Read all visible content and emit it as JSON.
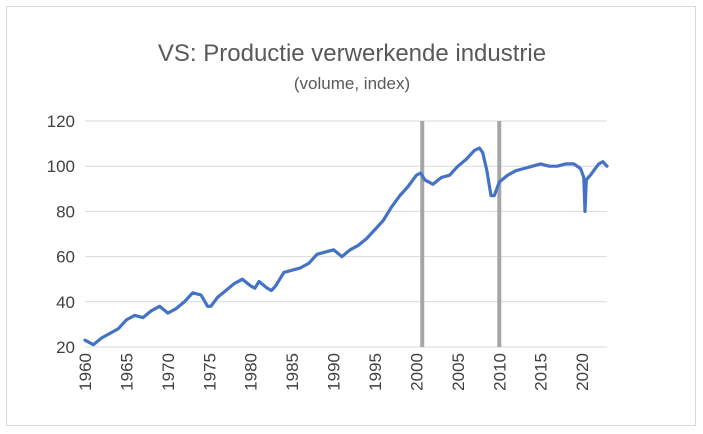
{
  "chart_data": {
    "type": "line",
    "title": "VS: Productie verwerkende industrie",
    "subtitle": "(volume, index)",
    "xlabel": "",
    "ylabel": "",
    "xlim": [
      1960,
      2023
    ],
    "ylim": [
      20,
      120
    ],
    "y_ticks": [
      "20",
      "40",
      "60",
      "80",
      "100",
      "120"
    ],
    "x_ticks": [
      "1960",
      "1965",
      "1970",
      "1975",
      "1980",
      "1985",
      "1990",
      "1995",
      "2000",
      "2005",
      "2010",
      "2015",
      "2020"
    ],
    "grid": "horizontal",
    "legend": "none",
    "vertical_lines": [
      2000.7,
      2010.0
    ],
    "colors": {
      "series": "#4472c4",
      "vlines": "#a6a6a6",
      "grid": "#d9d9d9"
    },
    "series": [
      {
        "x": [
          1960.0,
          1961.0,
          1962.0,
          1963.0,
          1964.0,
          1965.0,
          1966.0,
          1967.0,
          1968.0,
          1969.0,
          1970.0,
          1971.0,
          1972.0,
          1973.0,
          1974.0,
          1974.8,
          1975.2,
          1976.0,
          1977.0,
          1978.0,
          1979.0,
          1980.0,
          1980.5,
          1981.0,
          1982.0,
          1982.5,
          1983.0,
          1984.0,
          1985.0,
          1986.0,
          1987.0,
          1988.0,
          1989.0,
          1990.0,
          1991.0,
          1992.0,
          1993.0,
          1994.0,
          1995.0,
          1996.0,
          1997.0,
          1998.0,
          1999.0,
          2000.0,
          2000.5,
          2001.0,
          2002.0,
          2003.0,
          2004.0,
          2005.0,
          2006.0,
          2007.0,
          2007.6,
          2008.0,
          2008.5,
          2009.0,
          2009.4,
          2010.0,
          2011.0,
          2012.0,
          2013.0,
          2014.0,
          2015.0,
          2016.0,
          2017.0,
          2018.0,
          2019.0,
          2019.8,
          2020.2,
          2020.35,
          2020.5,
          2021.0,
          2022.0,
          2022.5,
          2023.0
        ],
        "y": [
          23,
          21,
          24,
          26,
          28,
          32,
          34,
          33,
          36,
          38,
          35,
          37,
          40,
          44,
          43,
          38,
          38,
          42,
          45,
          48,
          50,
          47,
          46,
          49,
          46,
          45,
          47,
          53,
          54,
          55,
          57,
          61,
          62,
          63,
          60,
          63,
          65,
          68,
          72,
          76,
          82,
          87,
          91,
          96,
          97,
          94,
          92,
          95,
          96,
          100,
          103,
          107,
          108,
          106,
          98,
          87,
          87,
          93,
          96,
          98,
          99,
          100,
          101,
          100,
          100,
          101,
          101,
          99,
          95,
          80,
          94,
          96,
          101,
          102,
          100
        ]
      }
    ]
  }
}
